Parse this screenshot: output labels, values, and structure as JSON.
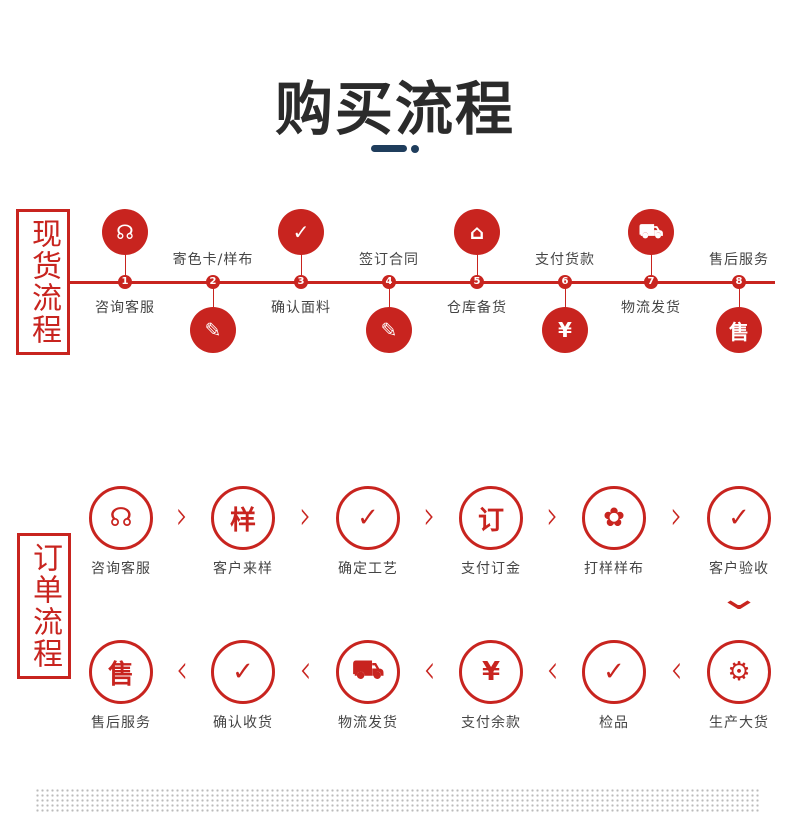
{
  "title": "购买流程",
  "stock": {
    "label": "现货流程",
    "steps": [
      {
        "n": "1",
        "label": "咨询客服",
        "icon": "headset-icon",
        "glyph": "☊"
      },
      {
        "n": "2",
        "label": "寄色卡/样布",
        "icon": "card-edit-icon",
        "glyph": "✎"
      },
      {
        "n": "3",
        "label": "确认面料",
        "icon": "document-check-icon",
        "glyph": "✓"
      },
      {
        "n": "4",
        "label": "签订合同",
        "icon": "card-edit-icon",
        "glyph": "✎"
      },
      {
        "n": "5",
        "label": "仓库备货",
        "icon": "warehouse-icon",
        "glyph": "⌂"
      },
      {
        "n": "6",
        "label": "支付货款",
        "icon": "payment-icon",
        "glyph": "¥"
      },
      {
        "n": "7",
        "label": "物流发货",
        "icon": "truck-icon",
        "glyph": "⛟"
      },
      {
        "n": "8",
        "label": "售后服务",
        "icon": "after-sales-shield-icon",
        "glyph": "售"
      }
    ]
  },
  "order": {
    "label": "订单流程",
    "row1": [
      {
        "label": "咨询客服",
        "icon": "headset-icon",
        "glyph": "☊"
      },
      {
        "label": "客户来样",
        "icon": "sample-document-icon",
        "glyph": "样"
      },
      {
        "label": "确定工艺",
        "icon": "document-check-icon",
        "glyph": "✓"
      },
      {
        "label": "支付订金",
        "icon": "deposit-shield-icon",
        "glyph": "订"
      },
      {
        "label": "打样样布",
        "icon": "fabric-icon",
        "glyph": "✿"
      },
      {
        "label": "客户验收",
        "icon": "clipboard-check-icon",
        "glyph": "✓"
      }
    ],
    "row2": [
      {
        "label": "售后服务",
        "icon": "after-sales-shield-icon",
        "glyph": "售"
      },
      {
        "label": "确认收货",
        "icon": "box-check-icon",
        "glyph": "✓"
      },
      {
        "label": "物流发货",
        "icon": "truck-icon",
        "glyph": "⛟"
      },
      {
        "label": "支付余款",
        "icon": "yuan-refresh-icon",
        "glyph": "¥"
      },
      {
        "label": "检品",
        "icon": "inspect-magnifier-icon",
        "glyph": "✓"
      },
      {
        "label": "生产大货",
        "icon": "sewing-machine-icon",
        "glyph": "⚙"
      }
    ],
    "arrow_right": "›",
    "arrow_left": "‹",
    "arrow_down": "⌄"
  },
  "colors": {
    "accent": "#c8241f",
    "navy": "#1f3d5c"
  }
}
